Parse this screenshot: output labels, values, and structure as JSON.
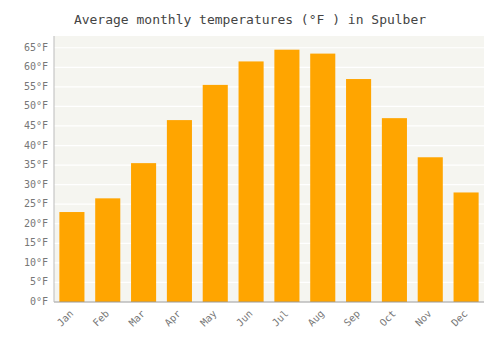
{
  "chart_data": {
    "type": "bar",
    "title": "Average monthly temperatures (°F ) in Spulber",
    "categories": [
      "Jan",
      "Feb",
      "Mar",
      "Apr",
      "May",
      "Jun",
      "Jul",
      "Aug",
      "Sep",
      "Oct",
      "Nov",
      "Dec"
    ],
    "values": [
      23,
      26.5,
      35.5,
      46.5,
      55.5,
      61.5,
      64.5,
      63.5,
      57,
      47,
      37,
      28
    ],
    "color": "#FFA500",
    "ylim": [
      0,
      68
    ],
    "yticks": [
      {
        "value": 0,
        "label": "0°F"
      },
      {
        "value": 5,
        "label": "5°F"
      },
      {
        "value": 10,
        "label": "10°F"
      },
      {
        "value": 15,
        "label": "15°F"
      },
      {
        "value": 20,
        "label": "20°F"
      },
      {
        "value": 25,
        "label": "25°F"
      },
      {
        "value": 30,
        "label": "30°F"
      },
      {
        "value": 35,
        "label": "35°F"
      },
      {
        "value": 40,
        "label": "40°F"
      },
      {
        "value": 45,
        "label": "45°F"
      },
      {
        "value": 50,
        "label": "50°F"
      },
      {
        "value": 55,
        "label": "55°F"
      },
      {
        "value": 60,
        "label": "60°F"
      },
      {
        "value": 65,
        "label": "65°F"
      }
    ],
    "grid": true
  }
}
